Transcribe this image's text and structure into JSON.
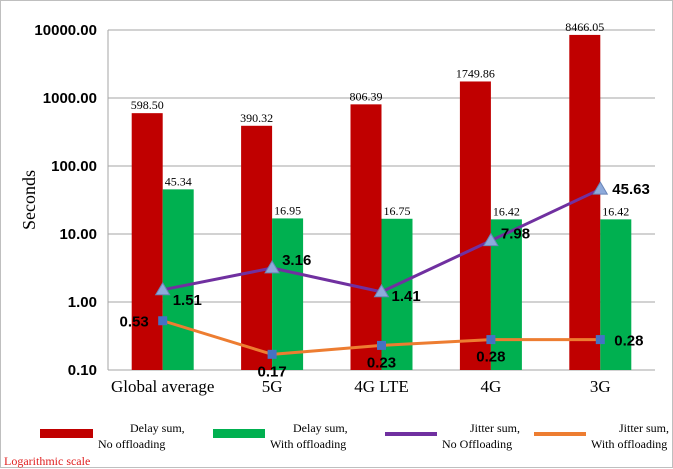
{
  "chart_data": {
    "type": "bar",
    "scale": "log",
    "ylabel": "Seconds",
    "ylim": [
      0.1,
      10000
    ],
    "y_ticks": [
      "10000.00",
      "1000.00",
      "100.00",
      "10.00",
      "1.00",
      "0.10"
    ],
    "y_tick_values": [
      10000,
      1000,
      100,
      10,
      1,
      0.1
    ],
    "categories": [
      "Global average",
      "5G",
      "4G LTE",
      "4G",
      "3G"
    ],
    "grid": true,
    "series": [
      {
        "name": "Delay sum, No offloading",
        "kind": "bar",
        "color": "#c00000",
        "values": [
          598.5,
          390.32,
          806.39,
          1749.86,
          8466.05
        ],
        "labels": [
          "598.50",
          "390.32",
          "806.39",
          "1749.86",
          "8466.05"
        ]
      },
      {
        "name": "Delay sum, With offloading",
        "kind": "bar",
        "color": "#00b050",
        "values": [
          45.34,
          16.95,
          16.75,
          16.42,
          16.42
        ],
        "labels": [
          "45.34",
          "16.95",
          "16.75",
          "16.42",
          "16.42"
        ]
      },
      {
        "name": "Jitter sum, No Offloading",
        "kind": "line",
        "color": "#7030a0",
        "marker": "triangle",
        "marker_color": "#8eaadb",
        "values": [
          1.51,
          3.16,
          1.41,
          7.98,
          45.63
        ],
        "labels": [
          "1.51",
          "3.16",
          "1.41",
          "7.98",
          "45.63"
        ]
      },
      {
        "name": "Jitter sum, With offloading",
        "kind": "line",
        "color": "#ed7d31",
        "marker": "square",
        "marker_color": "#4472c4",
        "values": [
          0.53,
          0.17,
          0.23,
          0.28,
          0.28
        ],
        "labels": [
          "0.53",
          "0.17",
          "0.23",
          "0.28",
          "0.28"
        ]
      }
    ],
    "legend_position": "bottom",
    "legend": [
      {
        "line1": "Delay sum,",
        "line2": "No offloading",
        "color": "#c00000",
        "kind": "bar"
      },
      {
        "line1": "Delay sum,",
        "line2": "With offloading",
        "color": "#00b050",
        "kind": "bar"
      },
      {
        "line1": "Jitter sum,",
        "line2": "No Offloading",
        "color": "#7030a0",
        "kind": "line"
      },
      {
        "line1": "Jitter sum,",
        "line2": "With offloading",
        "color": "#ed7d31",
        "kind": "line"
      }
    ],
    "note": "Logarithmic scale"
  }
}
